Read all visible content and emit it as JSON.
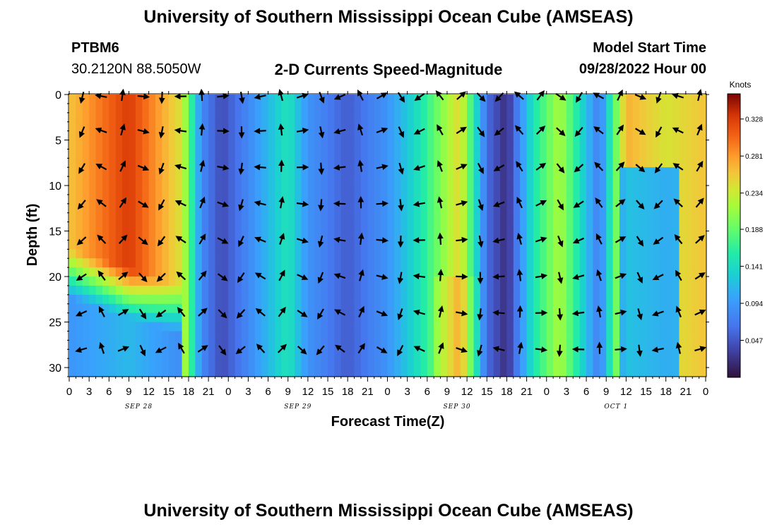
{
  "header": {
    "title": "University of Southern Mississippi Ocean Cube (AMSEAS)",
    "station": "PTBM6",
    "coordinates": "30.2120N  88.5050W",
    "plot_title": "2-D Currents Speed-Magnitude",
    "model_start_label": "Model Start Time",
    "model_start_value": "09/28/2022 Hour 00"
  },
  "footer": {
    "title": "University of Southern Mississippi Ocean Cube (AMSEAS)"
  },
  "chart_data": {
    "type": "heatmap",
    "title": "2-D Currents Speed-Magnitude",
    "xlabel": "Forecast Time(Z)",
    "ylabel": "Depth (ft)",
    "xlim": [
      0,
      96
    ],
    "ylim": [
      0,
      31
    ],
    "x_tick_labels": [
      "0",
      "3",
      "6",
      "9",
      "12",
      "15",
      "18",
      "21",
      "0",
      "3",
      "6",
      "9",
      "12",
      "15",
      "18",
      "21",
      "0",
      "3",
      "6",
      "9",
      "12",
      "15",
      "18",
      "21",
      "0",
      "3",
      "6",
      "9",
      "12",
      "15",
      "18",
      "21",
      "0"
    ],
    "y_tick_labels": [
      "0",
      "5",
      "10",
      "15",
      "20",
      "25",
      "30"
    ],
    "y_ticks": [
      0,
      5,
      10,
      15,
      20,
      25,
      30
    ],
    "date_labels": [
      {
        "label": "SEP 28",
        "hour": 10.5
      },
      {
        "label": "SEP 29",
        "hour": 34.5
      },
      {
        "label": "SEP 30",
        "hour": 58.5
      },
      {
        "label": "OCT 1",
        "hour": 82.5
      }
    ],
    "colorbar": {
      "unit_label": "Knots",
      "tick_labels": [
        "0.047",
        "0.094",
        "0.141",
        "0.188",
        "0.234",
        "0.281",
        "0.328"
      ],
      "min": 0.0,
      "max": 0.36
    },
    "vector_depths": [
      0,
      4,
      8,
      12,
      16,
      20,
      24,
      28
    ],
    "vector_hours": [
      2,
      5,
      8,
      11,
      14,
      17,
      20,
      23,
      26,
      29,
      32,
      35,
      38,
      41,
      44,
      47,
      50,
      53,
      56,
      59,
      62,
      65,
      68,
      71,
      74,
      77,
      80,
      83,
      86,
      89,
      92,
      95
    ],
    "speed_profile_surface": [
      {
        "hour": 0,
        "speed": 0.26
      },
      {
        "hour": 9,
        "speed": 0.33
      },
      {
        "hour": 17,
        "speed": 0.24
      },
      {
        "hour": 20,
        "speed": 0.08
      },
      {
        "hour": 23,
        "speed": 0.04
      },
      {
        "hour": 27,
        "speed": 0.08
      },
      {
        "hour": 33,
        "speed": 0.15
      },
      {
        "hour": 36,
        "speed": 0.09
      },
      {
        "hour": 42,
        "speed": 0.05
      },
      {
        "hour": 48,
        "speed": 0.09
      },
      {
        "hour": 53,
        "speed": 0.15
      },
      {
        "hour": 59,
        "speed": 0.25
      },
      {
        "hour": 63,
        "speed": 0.06
      },
      {
        "hour": 66,
        "speed": 0.02
      },
      {
        "hour": 70,
        "speed": 0.15
      },
      {
        "hour": 74,
        "speed": 0.22
      },
      {
        "hour": 80,
        "speed": 0.07
      },
      {
        "hour": 84,
        "speed": 0.27
      },
      {
        "hour": 90,
        "speed": 0.24
      },
      {
        "hour": 96,
        "speed": 0.26
      }
    ]
  }
}
